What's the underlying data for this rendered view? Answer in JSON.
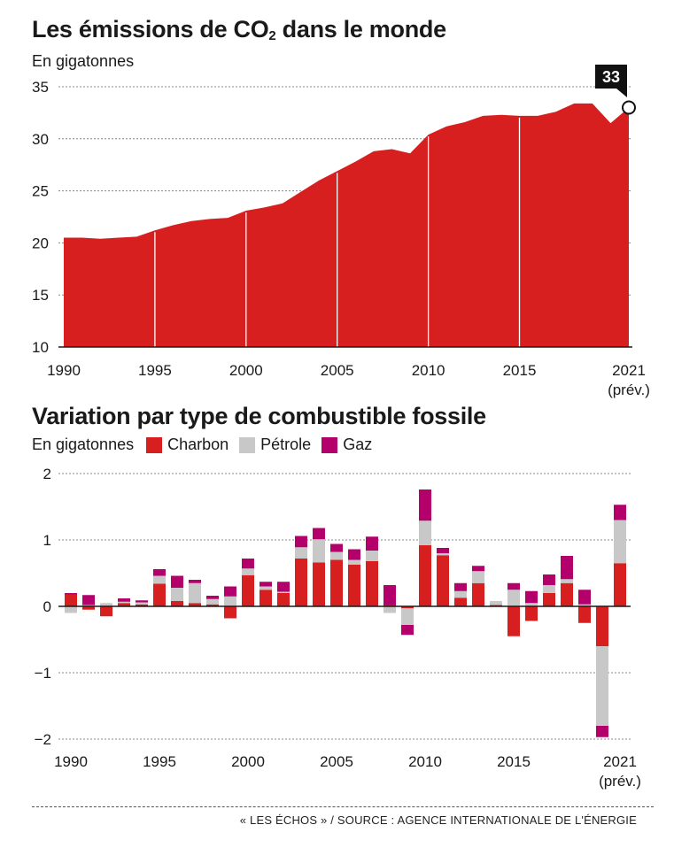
{
  "source": "« LES ÉCHOS » / SOURCE : AGENCE INTERNATIONALE DE L'ÉNERGIE",
  "colors": {
    "area": "#d81f1f",
    "charbon": "#d81f1f",
    "petrole": "#c8c8c8",
    "gaz": "#b3006b",
    "grid": "#888888"
  },
  "chart_data": [
    {
      "type": "area",
      "title_main": "Les émissions de CO",
      "title_sub": "2",
      "title_end": " dans le monde",
      "ylabel": "En gigatonnes",
      "ylim": [
        10,
        35
      ],
      "yticks": [
        "10",
        "15",
        "20",
        "25",
        "30",
        "35"
      ],
      "xticks": [
        "1990",
        "1995",
        "2000",
        "2005",
        "2010",
        "2015",
        "2021"
      ],
      "xtick_note": "(prév.)",
      "x": [
        1990,
        1991,
        1992,
        1993,
        1994,
        1995,
        1996,
        1997,
        1998,
        1999,
        2000,
        2001,
        2002,
        2003,
        2004,
        2005,
        2006,
        2007,
        2008,
        2009,
        2010,
        2011,
        2012,
        2013,
        2014,
        2015,
        2016,
        2017,
        2018,
        2019,
        2020,
        2021
      ],
      "values": [
        20.5,
        20.5,
        20.4,
        20.5,
        20.6,
        21.2,
        21.7,
        22.1,
        22.3,
        22.4,
        23.1,
        23.4,
        23.8,
        24.9,
        26.0,
        26.9,
        27.8,
        28.8,
        29.0,
        28.6,
        30.4,
        31.2,
        31.6,
        32.2,
        32.3,
        32.2,
        32.2,
        32.6,
        33.4,
        33.4,
        31.5,
        33.0
      ],
      "annotation": {
        "x": 2021,
        "label": "33"
      }
    },
    {
      "type": "bar",
      "stacked": true,
      "title": "Variation par type de combustible fossile",
      "ylabel": "En gigatonnes",
      "ylim": [
        -2,
        2
      ],
      "yticks": [
        "−2",
        "−1",
        "0",
        "1",
        "2"
      ],
      "xticks": [
        "1990",
        "1995",
        "2000",
        "2005",
        "2010",
        "2015",
        "2021"
      ],
      "xtick_note": "(prév.)",
      "x": [
        1990,
        1991,
        1992,
        1993,
        1994,
        1995,
        1996,
        1997,
        1998,
        1999,
        2000,
        2001,
        2002,
        2003,
        2004,
        2005,
        2006,
        2007,
        2008,
        2009,
        2010,
        2011,
        2012,
        2013,
        2014,
        2015,
        2016,
        2017,
        2018,
        2019,
        2020,
        2021
      ],
      "series": [
        {
          "name": "Charbon",
          "values": [
            0.18,
            -0.05,
            -0.15,
            0.05,
            0.03,
            0.34,
            0.08,
            0.05,
            0.03,
            -0.18,
            0.47,
            0.25,
            0.2,
            0.72,
            0.66,
            0.7,
            0.63,
            0.68,
            0.02,
            -0.03,
            0.92,
            0.77,
            0.13,
            0.35,
            0.02,
            -0.45,
            -0.22,
            0.2,
            0.35,
            -0.25,
            -0.6,
            0.65
          ]
        },
        {
          "name": "Pétrole",
          "values": [
            -0.1,
            0.02,
            0.05,
            0.02,
            0.03,
            0.12,
            0.2,
            0.3,
            0.08,
            0.15,
            0.1,
            0.05,
            0.02,
            0.17,
            0.35,
            0.12,
            0.07,
            0.16,
            -0.1,
            -0.25,
            0.37,
            0.03,
            0.1,
            0.18,
            0.06,
            0.25,
            0.05,
            0.12,
            0.06,
            0.03,
            -1.2,
            0.65
          ]
        },
        {
          "name": "Gaz",
          "values": [
            0.02,
            0.15,
            0.0,
            0.05,
            0.03,
            0.1,
            0.18,
            0.05,
            0.05,
            0.15,
            0.15,
            0.07,
            0.15,
            0.17,
            0.17,
            0.12,
            0.16,
            0.21,
            0.3,
            -0.15,
            0.47,
            0.08,
            0.12,
            0.08,
            0.0,
            0.1,
            0.18,
            0.16,
            0.35,
            0.22,
            -0.17,
            0.23
          ]
        }
      ]
    }
  ]
}
